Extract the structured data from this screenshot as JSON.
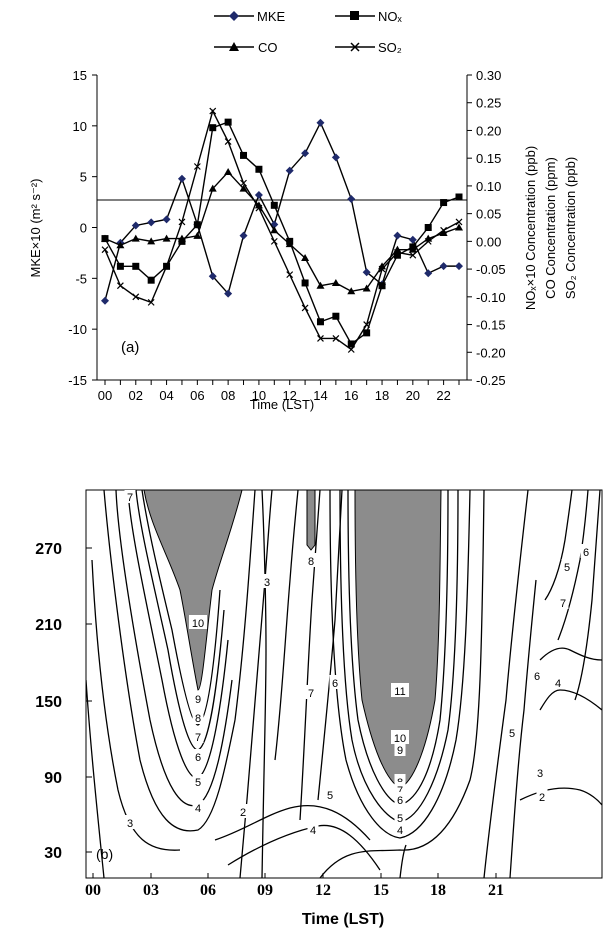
{
  "chart_data": [
    {
      "type": "line",
      "panel_label": "(a)",
      "legend": [
        {
          "label": "MKE",
          "marker": "diamond"
        },
        {
          "label": "NOₓ",
          "marker": "square"
        },
        {
          "label": "CO",
          "marker": "triangle"
        },
        {
          "label": "SO₂",
          "marker": "cross"
        }
      ],
      "xlabel": "Time (LST)",
      "x": [
        0,
        1,
        2,
        3,
        4,
        5,
        6,
        7,
        8,
        9,
        10,
        11,
        12,
        13,
        14,
        15,
        16,
        17,
        18,
        19,
        20,
        21,
        22,
        23
      ],
      "x_tick_labels": [
        "00",
        "02",
        "04",
        "06",
        "08",
        "10",
        "12",
        "14",
        "16",
        "18",
        "20",
        "22"
      ],
      "ylabel_left": "MKE×10 (m² s⁻²)",
      "ylim_left": [
        -15,
        15
      ],
      "y_left_ticks": [
        "-15",
        "-10",
        "-5",
        "0",
        "5",
        "10",
        "15"
      ],
      "ylabel_right": [
        "NOₓ×10 Concentration (ppb)",
        "CO Concentration (ppm)",
        "SO₂ Concentration (ppb)"
      ],
      "ylim_right": [
        -0.25,
        0.3
      ],
      "y_right_ticks": [
        "-0.25",
        "-0.20",
        "-0.15",
        "-0.10",
        "-0.05",
        "0.00",
        "0.05",
        "0.10",
        "0.15",
        "0.20",
        "0.25",
        "0.30"
      ],
      "series": [
        {
          "name": "MKE",
          "axis": "left",
          "color": "#1f2a6b",
          "values": [
            -7.2,
            -1.5,
            0.2,
            0.5,
            0.8,
            4.8,
            0.3,
            -4.8,
            -6.5,
            -0.8,
            3.2,
            0.3,
            5.6,
            7.3,
            10.3,
            6.9,
            2.8,
            -4.4,
            -5.6,
            -0.8,
            -1.2,
            -4.5,
            -3.8,
            -3.8
          ]
        },
        {
          "name": "NOₓ",
          "axis": "right",
          "values": [
            0.005,
            -0.045,
            -0.045,
            -0.07,
            -0.045,
            0.0,
            0.03,
            0.205,
            0.215,
            0.155,
            0.13,
            0.065,
            0.0,
            -0.075,
            -0.145,
            -0.135,
            -0.185,
            -0.165,
            -0.08,
            -0.025,
            -0.01,
            0.025,
            0.07,
            0.08
          ]
        },
        {
          "name": "CO",
          "axis": "right",
          "values": [
            0.005,
            -0.007,
            0.005,
            0.0,
            0.005,
            0.005,
            0.01,
            0.095,
            0.125,
            0.095,
            0.065,
            0.02,
            -0.005,
            -0.03,
            -0.08,
            -0.075,
            -0.09,
            -0.085,
            -0.045,
            -0.015,
            -0.015,
            0.005,
            0.015,
            0.025
          ]
        },
        {
          "name": "SO₂",
          "axis": "right",
          "values": [
            -0.015,
            -0.08,
            -0.1,
            -0.11,
            -0.045,
            0.035,
            0.135,
            0.235,
            0.18,
            0.105,
            0.06,
            0.0,
            -0.06,
            -0.12,
            -0.175,
            -0.175,
            -0.195,
            -0.15,
            -0.05,
            -0.02,
            -0.025,
            0.0,
            0.02,
            0.035
          ]
        }
      ]
    },
    {
      "type": "contour",
      "panel_label": "(b)",
      "xlabel": "Time (LST)",
      "x_tick_labels": [
        "00",
        "03",
        "06",
        "09",
        "12",
        "15",
        "18",
        "21"
      ],
      "y_tick_labels": [
        "30",
        "90",
        "150",
        "210",
        "270"
      ],
      "shaded_regions": [
        {
          "x_range": [
            3,
            6.5
          ],
          "y_range": [
            130,
            330
          ],
          "description": "values ≥ 8"
        },
        {
          "x_range": [
            10,
            16.5
          ],
          "y_range": [
            55,
            330
          ],
          "description": "values ≥ 8"
        }
      ],
      "contour_labels": [
        "7",
        "10",
        "9",
        "8",
        "7",
        "6",
        "5",
        "4",
        "3",
        "2",
        "3",
        "8",
        "7",
        "6",
        "4",
        "5",
        "11",
        "10",
        "9",
        "8",
        "7",
        "6",
        "5",
        "4",
        "7",
        "6",
        "5",
        "6",
        "5",
        "4",
        "3",
        "2"
      ]
    }
  ]
}
